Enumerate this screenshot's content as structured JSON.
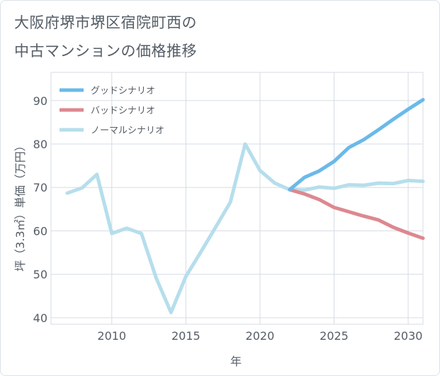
{
  "chart_data": {
    "type": "line",
    "title_lines": [
      "大阪府堺市堺区宿院町西の",
      "中古マンションの価格推移"
    ],
    "xlabel": "年",
    "ylabel": "坪（3.3㎡）単価（万円）",
    "xlim": [
      2005.9,
      2031
    ],
    "ylim": [
      38.5,
      96.5
    ],
    "x_ticks": [
      2010,
      2015,
      2020,
      2025,
      2030
    ],
    "y_ticks": [
      40,
      50,
      60,
      70,
      80,
      90
    ],
    "grid": true,
    "legend_position": "top-left",
    "series": [
      {
        "name": "グッドシナリオ",
        "color": "#6bb9ea",
        "x": [
          2022,
          2023,
          2024,
          2025,
          2026,
          2027,
          2028,
          2029,
          2030,
          2031
        ],
        "y": [
          69.5,
          72.3,
          73.8,
          76.0,
          79.2,
          81.0,
          83.3,
          85.7,
          88.0,
          90.2
        ]
      },
      {
        "name": "バッドシナリオ",
        "color": "#dd8890",
        "x": [
          2022,
          2023,
          2024,
          2025,
          2026,
          2027,
          2028,
          2029,
          2030,
          2031
        ],
        "y": [
          69.5,
          68.5,
          67.2,
          65.4,
          64.4,
          63.4,
          62.5,
          60.8,
          59.5,
          58.3
        ]
      },
      {
        "name": "ノーマルシナリオ",
        "color": "#b6deec",
        "x": [
          2007,
          2008,
          2009,
          2010,
          2011,
          2012,
          2013,
          2014,
          2015,
          2016,
          2017,
          2018,
          2019,
          2020,
          2021,
          2022,
          2023,
          2024,
          2025,
          2026,
          2027,
          2028,
          2029,
          2030,
          2031
        ],
        "y": [
          68.7,
          69.9,
          73.0,
          59.4,
          60.6,
          59.4,
          49.1,
          41.2,
          49.5,
          55.1,
          60.8,
          66.6,
          80.0,
          73.9,
          71.0,
          69.5,
          69.4,
          70.1,
          69.8,
          70.6,
          70.5,
          71.0,
          70.9,
          71.6,
          71.4
        ]
      }
    ]
  }
}
